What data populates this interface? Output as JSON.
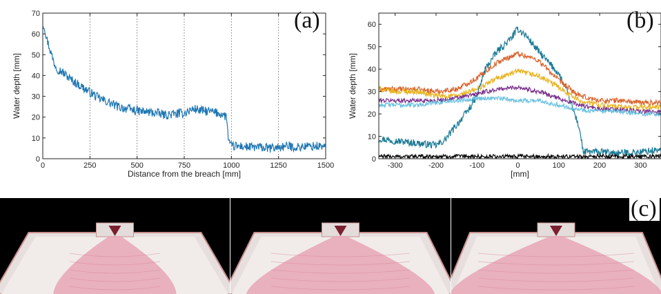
{
  "panels": {
    "a_label": "(a)",
    "b_label": "(b)",
    "c_label": "(c)"
  },
  "chart_data": [
    {
      "type": "line",
      "panel": "(a)",
      "title": "",
      "xlabel": "Distance from the breach [mm]",
      "ylabel": "Water depth [mm]",
      "xlim": [
        0,
        1500
      ],
      "ylim": [
        0,
        70
      ],
      "xticks": [
        0,
        250,
        500,
        750,
        1000,
        1250,
        1500
      ],
      "yticks": [
        0,
        10,
        20,
        30,
        40,
        50,
        60,
        70
      ],
      "grid": "vertical dotted lines at x ticks",
      "series": [
        {
          "color": "#1f77b4",
          "noise": 2.2,
          "x": [
            0,
            10,
            20,
            40,
            60,
            80,
            100,
            150,
            200,
            250,
            300,
            350,
            400,
            450,
            500,
            550,
            600,
            650,
            700,
            750,
            800,
            850,
            900,
            950,
            975,
            985,
            1000,
            1050,
            1100,
            1150,
            1200,
            1250,
            1300,
            1350,
            1400,
            1450,
            1500
          ],
          "y": [
            65,
            63,
            58,
            52,
            46,
            43,
            42,
            38,
            35,
            32,
            29,
            27,
            25,
            24,
            23,
            22.5,
            22,
            21,
            21.5,
            22,
            24,
            23,
            22.5,
            21.5,
            20,
            8,
            6,
            6,
            5.5,
            5.5,
            5,
            5.5,
            6,
            5.5,
            6,
            6,
            6
          ]
        }
      ]
    },
    {
      "type": "line",
      "panel": "(b)",
      "title": "",
      "xlabel": "[mm]",
      "ylabel": "Water depth [mm]",
      "xlim": [
        -340,
        350
      ],
      "ylim": [
        0,
        65
      ],
      "xticks": [
        -300,
        -200,
        -100,
        0,
        100,
        200,
        300
      ],
      "yticks": [
        0,
        10,
        20,
        30,
        40,
        50,
        60
      ],
      "grid": "none",
      "series": [
        {
          "color": "#1a7a96",
          "noise": 1.6,
          "x": [
            -340,
            -300,
            -250,
            -200,
            -180,
            -150,
            -120,
            -100,
            -80,
            -50,
            -20,
            0,
            20,
            50,
            80,
            100,
            120,
            150,
            160,
            200,
            250,
            300,
            350
          ],
          "y": [
            9,
            8,
            7,
            6,
            8,
            15,
            22,
            28,
            40,
            48,
            53,
            58,
            55,
            48,
            42,
            38,
            30,
            14,
            3,
            3,
            2.5,
            3,
            4
          ]
        },
        {
          "color": "#d9622b",
          "noise": 1.2,
          "x": [
            -340,
            -300,
            -250,
            -200,
            -150,
            -100,
            -50,
            0,
            50,
            100,
            150,
            200,
            250,
            300,
            350
          ],
          "y": [
            31,
            31,
            31,
            30,
            31,
            36,
            43,
            47,
            44,
            35,
            28,
            26,
            26,
            25,
            25
          ]
        },
        {
          "color": "#e8b322",
          "noise": 1.2,
          "x": [
            -340,
            -300,
            -250,
            -200,
            -150,
            -100,
            -50,
            0,
            50,
            100,
            150,
            200,
            250,
            300,
            350
          ],
          "y": [
            31,
            30,
            30,
            28,
            28,
            31,
            36,
            39,
            37,
            32,
            26,
            24,
            23,
            23,
            23
          ]
        },
        {
          "color": "#7a2e8c",
          "noise": 1.0,
          "x": [
            -340,
            -300,
            -250,
            -200,
            -150,
            -100,
            -50,
            0,
            50,
            100,
            150,
            200,
            250,
            300,
            350
          ],
          "y": [
            26,
            26,
            26,
            26,
            27,
            29,
            31,
            32,
            30,
            27,
            24,
            22,
            22,
            21,
            21
          ]
        },
        {
          "color": "#6cc1e0",
          "noise": 1.0,
          "x": [
            -340,
            -300,
            -250,
            -200,
            -150,
            -100,
            -50,
            0,
            50,
            100,
            150,
            200,
            250,
            300,
            350
          ],
          "y": [
            24,
            24,
            24,
            25,
            26,
            27,
            27,
            26,
            26,
            24,
            22,
            21,
            21,
            20,
            20
          ]
        },
        {
          "color": "#000000",
          "noise": 0.9,
          "x": [
            -340,
            350
          ],
          "y": [
            1,
            1
          ]
        }
      ]
    }
  ],
  "photos": {
    "count": 3,
    "background_color": "#000000",
    "tray_color": "#e6dfdd",
    "water_color": "#e7a6b6",
    "spread_fractions": [
      0.45,
      0.72,
      0.85
    ]
  }
}
